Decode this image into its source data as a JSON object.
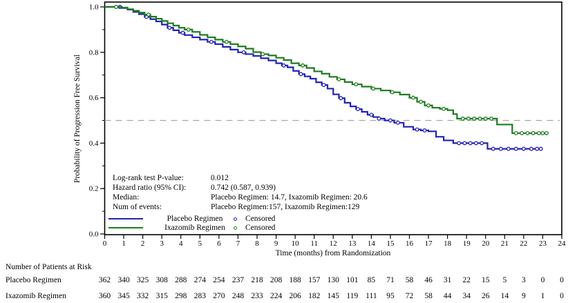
{
  "chart_data": {
    "type": "line",
    "subtype": "kaplan-meier-step",
    "title": "",
    "xlabel": "Time (months) from Randomization",
    "ylabel": "Probability of Progression Free Survival",
    "xlim": [
      0,
      24
    ],
    "ylim": [
      0,
      1
    ],
    "grid": false,
    "legend_position": "inside-bottom-left",
    "xticks": [
      0,
      1,
      2,
      3,
      4,
      5,
      6,
      7,
      8,
      9,
      10,
      11,
      12,
      13,
      14,
      15,
      16,
      17,
      18,
      19,
      20,
      21,
      22,
      23,
      24
    ],
    "yticks": [
      0.0,
      0.2,
      0.4,
      0.6,
      0.8,
      1.0
    ],
    "ytick_labels": [
      "0.0",
      "0.2",
      "0.4",
      "0.6",
      "0.8",
      "1.0"
    ],
    "y_minor_step": 0.1,
    "reference_line": {
      "y": 0.5,
      "style": "dashed",
      "color": "#a6a6a6"
    },
    "series": [
      {
        "name": "Placebo Regimen",
        "color": "#2222b2",
        "steps": [
          [
            0,
            1.0
          ],
          [
            0.9,
            0.995
          ],
          [
            1.2,
            0.988
          ],
          [
            1.5,
            0.978
          ],
          [
            1.8,
            0.968
          ],
          [
            2.1,
            0.956
          ],
          [
            2.4,
            0.946
          ],
          [
            2.7,
            0.936
          ],
          [
            3.0,
            0.922
          ],
          [
            3.3,
            0.908
          ],
          [
            3.6,
            0.897
          ],
          [
            3.9,
            0.886
          ],
          [
            4.2,
            0.876
          ],
          [
            4.6,
            0.866
          ],
          [
            5.0,
            0.856
          ],
          [
            5.4,
            0.846
          ],
          [
            5.8,
            0.836
          ],
          [
            6.2,
            0.824
          ],
          [
            6.6,
            0.812
          ],
          [
            7.0,
            0.8
          ],
          [
            7.4,
            0.792
          ],
          [
            7.8,
            0.784
          ],
          [
            8.2,
            0.774
          ],
          [
            8.6,
            0.764
          ],
          [
            9.0,
            0.752
          ],
          [
            9.3,
            0.742
          ],
          [
            9.6,
            0.734
          ],
          [
            9.9,
            0.718
          ],
          [
            10.2,
            0.704
          ],
          [
            10.5,
            0.694
          ],
          [
            10.8,
            0.684
          ],
          [
            11.1,
            0.668
          ],
          [
            11.4,
            0.656
          ],
          [
            11.7,
            0.64
          ],
          [
            12.0,
            0.615
          ],
          [
            12.3,
            0.598
          ],
          [
            12.6,
            0.578
          ],
          [
            12.9,
            0.562
          ],
          [
            13.2,
            0.55
          ],
          [
            13.5,
            0.538
          ],
          [
            13.8,
            0.525
          ],
          [
            14.1,
            0.515
          ],
          [
            14.4,
            0.508
          ],
          [
            14.7,
            0.5
          ],
          [
            15.2,
            0.49
          ],
          [
            15.7,
            0.472
          ],
          [
            16.2,
            0.46
          ],
          [
            16.6,
            0.456
          ],
          [
            17.0,
            0.452
          ],
          [
            17.4,
            0.428
          ],
          [
            17.8,
            0.412
          ],
          [
            18.3,
            0.4
          ],
          [
            20.1,
            0.375
          ],
          [
            22.9,
            0.375
          ]
        ],
        "censor_times": [
          0.8,
          2.2,
          3.4,
          4.1,
          5.6,
          7.3,
          9.4,
          10.3,
          11.5,
          12.4,
          13.3,
          14.0,
          14.4,
          15.0,
          15.4,
          16.4,
          16.8,
          18.6,
          18.9,
          19.2,
          19.5,
          19.8,
          20.4,
          20.8,
          21.2,
          21.6,
          22.0,
          22.4,
          22.7,
          22.9
        ]
      },
      {
        "name": "Ixazomib Regimen",
        "color": "#1e7b1e",
        "steps": [
          [
            0,
            1.0
          ],
          [
            0.8,
            0.997
          ],
          [
            1.2,
            0.99
          ],
          [
            1.5,
            0.983
          ],
          [
            1.8,
            0.975
          ],
          [
            2.1,
            0.966
          ],
          [
            2.4,
            0.957
          ],
          [
            2.7,
            0.948
          ],
          [
            3.0,
            0.938
          ],
          [
            3.3,
            0.928
          ],
          [
            3.6,
            0.918
          ],
          [
            3.9,
            0.908
          ],
          [
            4.2,
            0.9
          ],
          [
            4.6,
            0.89
          ],
          [
            5.0,
            0.877
          ],
          [
            5.4,
            0.866
          ],
          [
            5.8,
            0.856
          ],
          [
            6.2,
            0.846
          ],
          [
            6.6,
            0.836
          ],
          [
            7.0,
            0.826
          ],
          [
            7.4,
            0.816
          ],
          [
            7.8,
            0.801
          ],
          [
            8.2,
            0.792
          ],
          [
            8.6,
            0.786
          ],
          [
            9.0,
            0.776
          ],
          [
            9.4,
            0.766
          ],
          [
            9.8,
            0.752
          ],
          [
            10.2,
            0.742
          ],
          [
            10.6,
            0.731
          ],
          [
            11.0,
            0.716
          ],
          [
            11.4,
            0.706
          ],
          [
            11.8,
            0.692
          ],
          [
            12.2,
            0.681
          ],
          [
            12.6,
            0.669
          ],
          [
            13.0,
            0.659
          ],
          [
            13.5,
            0.649
          ],
          [
            14.0,
            0.64
          ],
          [
            14.5,
            0.632
          ],
          [
            15.0,
            0.624
          ],
          [
            15.5,
            0.614
          ],
          [
            16.0,
            0.6
          ],
          [
            16.4,
            0.582
          ],
          [
            16.8,
            0.566
          ],
          [
            17.2,
            0.556
          ],
          [
            17.6,
            0.551
          ],
          [
            18.0,
            0.545
          ],
          [
            18.3,
            0.528
          ],
          [
            18.5,
            0.508
          ],
          [
            20.6,
            0.482
          ],
          [
            21.4,
            0.444
          ],
          [
            23.3,
            0.444
          ]
        ],
        "censor_times": [
          0.6,
          2.3,
          4.4,
          6.4,
          8.3,
          10.4,
          12.3,
          13.2,
          14.1,
          15.1,
          16.2,
          16.6,
          17.0,
          17.8,
          18.8,
          19.1,
          19.4,
          19.7,
          20.0,
          20.3,
          21.6,
          21.9,
          22.2,
          22.5,
          22.8,
          23.0,
          23.2
        ]
      }
    ]
  },
  "stats": {
    "rows": [
      {
        "label": "Log-rank test P-value:",
        "value": "0.012"
      },
      {
        "label": "Hazard ratio (95% CI):",
        "value": "0.742 (0.587, 0.939)"
      },
      {
        "label": "Median:",
        "value": "Placebo Regimen: 14.7, Ixazomib Regimen: 20.6"
      },
      {
        "label": "Num of events:",
        "value": "Placebo Regimen:157, Ixazomib Regimen:129"
      }
    ]
  },
  "legend": {
    "series": [
      {
        "label": "Placebo Regimen",
        "color": "#2222b2"
      },
      {
        "label": "Ixazomib Regimen",
        "color": "#1e7b1e"
      }
    ],
    "censored": [
      {
        "label": "Censored",
        "color": "#2222b2"
      },
      {
        "label": "Censored",
        "color": "#1e7b1e"
      }
    ]
  },
  "risk_table": {
    "title": "Number of Patients at Risk",
    "time_points": [
      0,
      1,
      2,
      3,
      4,
      5,
      6,
      7,
      8,
      9,
      10,
      11,
      12,
      13,
      14,
      15,
      16,
      17,
      18,
      19,
      20,
      21,
      22,
      23,
      24
    ],
    "rows": [
      {
        "label": "Placebo Regimen",
        "counts": [
          362,
          340,
          325,
          308,
          288,
          274,
          254,
          237,
          218,
          208,
          188,
          157,
          130,
          101,
          85,
          71,
          58,
          46,
          31,
          22,
          15,
          5,
          3,
          0,
          0
        ]
      },
      {
        "label": "Ixazomib Regimen",
        "counts": [
          360,
          345,
          332,
          315,
          298,
          283,
          270,
          248,
          233,
          224,
          206,
          182,
          145,
          119,
          111,
          95,
          72,
          58,
          44,
          34,
          26,
          14,
          9,
          1,
          0
        ]
      }
    ]
  }
}
